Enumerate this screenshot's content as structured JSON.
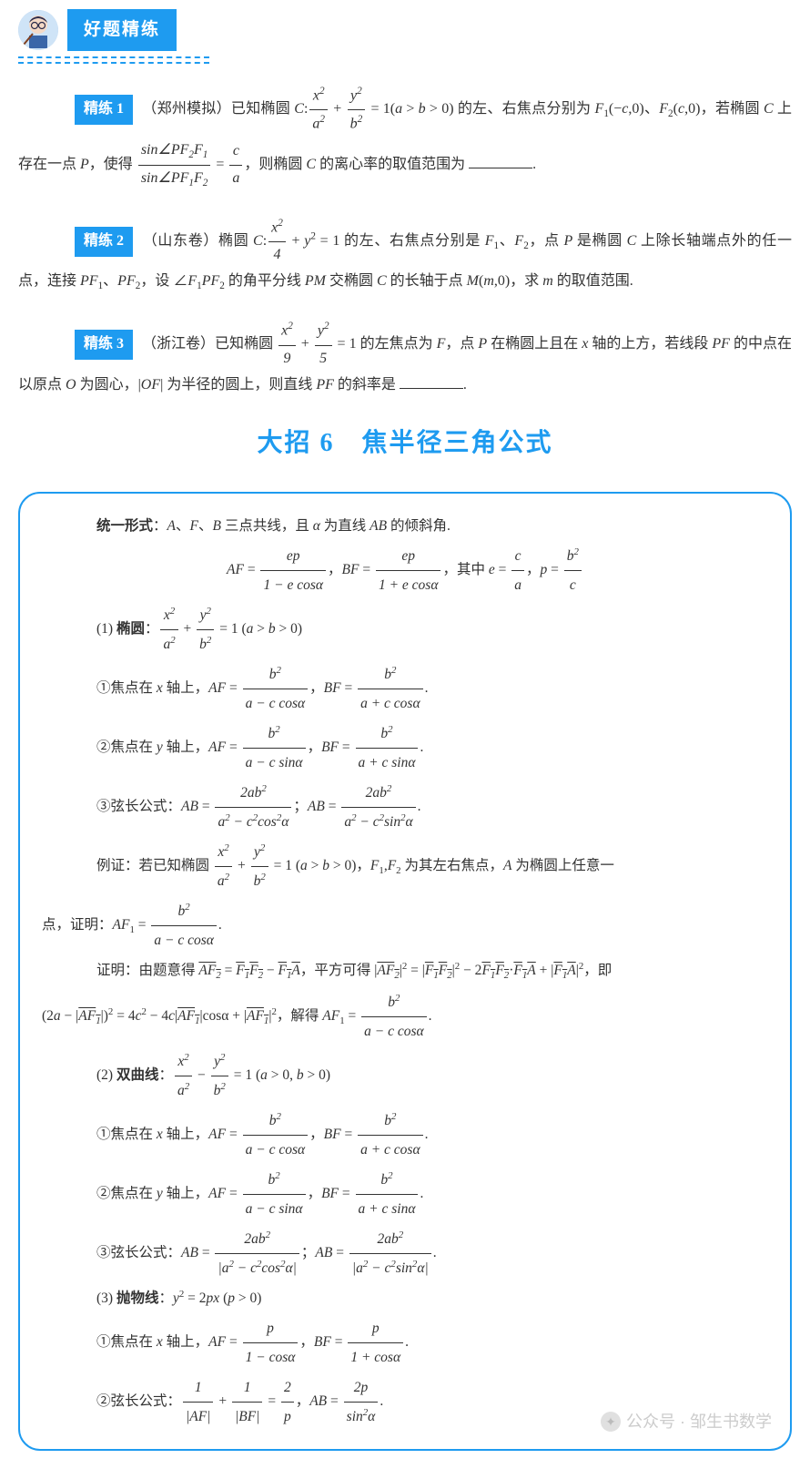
{
  "header": {
    "banner": "好题精练"
  },
  "problems": [
    {
      "tag": "精练 1",
      "body_html": "（郑州模拟）已知椭圆 <span class='italic'>C</span>:<span class='frac'><span class='num'>x<sup>2</sup></span><span class='den'>a<sup>2</sup></span></span> + <span class='frac'><span class='num'>y<sup>2</sup></span><span class='den'>b<sup>2</sup></span></span> = 1(<span class='italic'>a</span> &gt; <span class='italic'>b</span> &gt; 0) 的左、右焦点分别为 <span class='italic'>F</span><sub>1</sub>(−<span class='italic'>c</span>,0)、<span class='italic'>F</span><sub>2</sub>(<span class='italic'>c</span>,0)，若椭圆 <span class='italic'>C</span> 上存在一点 <span class='italic'>P</span>，使得 <span class='frac'><span class='num'>sin∠<span class='italic'>PF</span><sub>2</sub><span class='italic'>F</span><sub>1</sub></span><span class='den'>sin∠<span class='italic'>PF</span><sub>1</sub><span class='italic'>F</span><sub>2</sub></span></span> = <span class='frac'><span class='num'>c</span><span class='den'>a</span></span>，则椭圆 <span class='italic'>C</span> 的离心率的取值范围为 <span class='blank'></span>."
    },
    {
      "tag": "精练 2",
      "body_html": "（山东卷）椭圆 <span class='italic'>C</span>:<span class='frac'><span class='num'>x<sup>2</sup></span><span class='den'>4</span></span> + <span class='italic'>y</span><sup>2</sup> = 1 的左、右焦点分别是 <span class='italic'>F</span><sub>1</sub>、<span class='italic'>F</span><sub>2</sub>，点 <span class='italic'>P</span> 是椭圆 <span class='italic'>C</span> 上除长轴端点外的任一点，连接 <span class='italic'>PF</span><sub>1</sub>、<span class='italic'>PF</span><sub>2</sub>，设 ∠<span class='italic'>F</span><sub>1</sub><span class='italic'>PF</span><sub>2</sub> 的角平分线 <span class='italic'>PM</span> 交椭圆 <span class='italic'>C</span> 的长轴于点 <span class='italic'>M</span>(<span class='italic'>m</span>,0)，求 <span class='italic'>m</span> 的取值范围."
    },
    {
      "tag": "精练 3",
      "body_html": "（浙江卷）已知椭圆 <span class='frac'><span class='num'>x<sup>2</sup></span><span class='den'>9</span></span> + <span class='frac'><span class='num'>y<sup>2</sup></span><span class='den'>5</span></span> = 1 的左焦点为 <span class='italic'>F</span>，点 <span class='italic'>P</span> 在椭圆上且在 <span class='italic'>x</span> 轴的上方，若线段 <span class='italic'>PF</span> 的中点在以原点 <span class='italic'>O</span> 为圆心，|<span class='italic'>OF</span>| 为半径的圆上，则直线 <span class='italic'>PF</span> 的斜率是 <span class='blank'></span>."
    }
  ],
  "section_title": "大招 6　焦半径三角公式",
  "box_lines": [
    {
      "cls": "pl",
      "html": "<b>统一形式</b>：<span class='italic'>A</span>、<span class='italic'>F</span>、<span class='italic'>B</span> 三点共线，且 <span class='italic'>α</span> 为直线 <span class='italic'>AB</span> 的倾斜角."
    },
    {
      "cls": "center-line",
      "html": "<span class='italic'>AF</span> = <span class='frac'><span class='num'>ep</span><span class='den'>1 − e cosα</span></span>，<span class='italic'>BF</span> = <span class='frac'><span class='num'>ep</span><span class='den'>1 + e cosα</span></span>，其中 <span class='italic'>e</span> = <span class='frac'><span class='num'>c</span><span class='den'>a</span></span>，<span class='italic'>p</span> = <span class='frac'><span class='num'>b<sup>2</sup></span><span class='den'>c</span></span>"
    },
    {
      "cls": "pl",
      "html": "(1) <b>椭圆</b>：<span class='frac'><span class='num'>x<sup>2</sup></span><span class='den'>a<sup>2</sup></span></span> + <span class='frac'><span class='num'>y<sup>2</sup></span><span class='den'>b<sup>2</sup></span></span> = 1 (<span class='italic'>a</span> &gt; <span class='italic'>b</span> &gt; 0)"
    },
    {
      "cls": "pl",
      "html": "①焦点在 <span class='italic'>x</span> 轴上，<span class='italic'>AF</span> = <span class='frac'><span class='num'>b<sup>2</sup></span><span class='den'>a − c cosα</span></span>，<span class='italic'>BF</span> = <span class='frac'><span class='num'>b<sup>2</sup></span><span class='den'>a + c cosα</span></span>."
    },
    {
      "cls": "pl",
      "html": "②焦点在 <span class='italic'>y</span> 轴上，<span class='italic'>AF</span> = <span class='frac'><span class='num'>b<sup>2</sup></span><span class='den'>a − c sinα</span></span>，<span class='italic'>BF</span> = <span class='frac'><span class='num'>b<sup>2</sup></span><span class='den'>a + c sinα</span></span>."
    },
    {
      "cls": "pl",
      "html": "③弦长公式：<span class='italic'>AB</span> = <span class='frac'><span class='num'>2ab<sup>2</sup></span><span class='den'>a<sup>2</sup> − c<sup>2</sup>cos<sup>2</sup>α</span></span>；<span class='italic'>AB</span> = <span class='frac'><span class='num'>2ab<sup>2</sup></span><span class='den'>a<sup>2</sup> − c<sup>2</sup>sin<sup>2</sup>α</span></span>."
    },
    {
      "cls": "pl",
      "html": "例证：若已知椭圆 <span class='frac'><span class='num'>x<sup>2</sup></span><span class='den'>a<sup>2</sup></span></span> + <span class='frac'><span class='num'>y<sup>2</sup></span><span class='den'>b<sup>2</sup></span></span> = 1 (<span class='italic'>a</span> &gt; <span class='italic'>b</span> &gt; 0)，<span class='italic'>F</span><sub>1</sub>,<span class='italic'>F</span><sub>2</sub> 为其左右焦点，<span class='italic'>A</span> 为椭圆上任意一"
    },
    {
      "cls": "pl2",
      "html": "点，证明：<span class='italic'>AF</span><sub>1</sub> = <span class='frac'><span class='num'>b<sup>2</sup></span><span class='den'>a − c cosα</span></span>."
    },
    {
      "cls": "pl",
      "html": "证明：由题意得 <span class='italic ov'>AF<sub>2</sub></span> = <span class='italic ov'>F<sub>1</sub>F<sub>2</sub></span> − <span class='italic ov'>F<sub>1</sub>A</span>，平方可得 |<span class='italic ov'>AF<sub>2</sub></span>|<sup>2</sup> = |<span class='italic ov'>F<sub>1</sub>F<sub>2</sub></span>|<sup>2</sup> − 2<span class='italic ov'>F<sub>1</sub>F<sub>2</sub></span>·<span class='italic ov'>F<sub>1</sub>A</span> + |<span class='italic ov'>F<sub>1</sub>A</span>|<sup>2</sup>，即"
    },
    {
      "cls": "pl2",
      "html": "(2<span class='italic'>a</span> − |<span class='italic ov'>AF<sub>1</sub></span>|)<sup>2</sup> = 4<span class='italic'>c</span><sup>2</sup> − 4<span class='italic'>c</span>|<span class='italic ov'>AF<sub>1</sub></span>|cosα + |<span class='italic ov'>AF<sub>1</sub></span>|<sup>2</sup>，解得 <span class='italic'>AF</span><sub>1</sub> = <span class='frac'><span class='num'>b<sup>2</sup></span><span class='den'>a − c cosα</span></span>."
    },
    {
      "cls": "pl",
      "html": "(2) <b>双曲线</b>：<span class='frac'><span class='num'>x<sup>2</sup></span><span class='den'>a<sup>2</sup></span></span> − <span class='frac'><span class='num'>y<sup>2</sup></span><span class='den'>b<sup>2</sup></span></span> = 1 (<span class='italic'>a</span> &gt; 0, <span class='italic'>b</span> &gt; 0)"
    },
    {
      "cls": "pl",
      "html": "①焦点在 <span class='italic'>x</span> 轴上，<span class='italic'>AF</span> = <span class='frac'><span class='num'>b<sup>2</sup></span><span class='den'>a − c cosα</span></span>，<span class='italic'>BF</span> = <span class='frac'><span class='num'>b<sup>2</sup></span><span class='den'>a + c cosα</span></span>."
    },
    {
      "cls": "pl",
      "html": "②焦点在 <span class='italic'>y</span> 轴上，<span class='italic'>AF</span> = <span class='frac'><span class='num'>b<sup>2</sup></span><span class='den'>a − c sinα</span></span>，<span class='italic'>BF</span> = <span class='frac'><span class='num'>b<sup>2</sup></span><span class='den'>a + c sinα</span></span>."
    },
    {
      "cls": "pl",
      "html": "③弦长公式：<span class='italic'>AB</span> = <span class='frac'><span class='num'>2ab<sup>2</sup></span><span class='den'>|a<sup>2</sup> − c<sup>2</sup>cos<sup>2</sup>α|</span></span>；<span class='italic'>AB</span> = <span class='frac'><span class='num'>2ab<sup>2</sup></span><span class='den'>|a<sup>2</sup> − c<sup>2</sup>sin<sup>2</sup>α|</span></span>."
    },
    {
      "cls": "pl",
      "html": "(3) <b>抛物线</b>：<span class='italic'>y</span><sup>2</sup> = 2<span class='italic'>px</span> (<span class='italic'>p</span> &gt; 0)"
    },
    {
      "cls": "pl",
      "html": "①焦点在 <span class='italic'>x</span> 轴上，<span class='italic'>AF</span> = <span class='frac'><span class='num'>p</span><span class='den'>1 − cosα</span></span>，<span class='italic'>BF</span> = <span class='frac'><span class='num'>p</span><span class='den'>1 + cosα</span></span>."
    },
    {
      "cls": "pl",
      "html": "②弦长公式：<span class='frac'><span class='num'>1</span><span class='den'>|AF|</span></span> + <span class='frac'><span class='num'>1</span><span class='den'>|BF|</span></span> = <span class='frac'><span class='num'>2</span><span class='den'>p</span></span>，<span class='italic'>AB</span> = <span class='frac'><span class='num'>2p</span><span class='den'>sin<sup>2</sup>α</span></span>."
    }
  ],
  "watermark": "公众号 · 邹生书数学",
  "colors": {
    "accent": "#1e9bf0",
    "text": "#333333",
    "background": "#ffffff",
    "watermark": "#cccccc"
  }
}
